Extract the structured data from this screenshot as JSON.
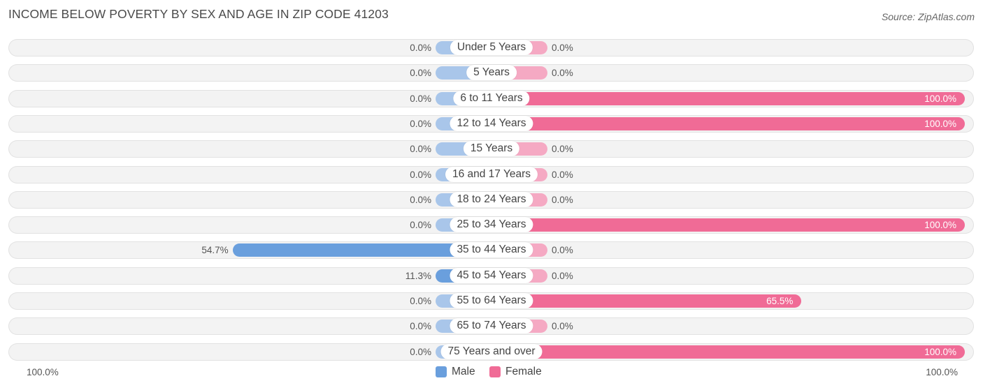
{
  "title": "INCOME BELOW POVERTY BY SEX AND AGE IN ZIP CODE 41203",
  "source": "Source: ZipAtlas.com",
  "axis": {
    "left_label": "100.0%",
    "right_label": "100.0%"
  },
  "legend": {
    "male": "Male",
    "female": "Female"
  },
  "colors": {
    "male": "#a9c6ea",
    "male_strong": "#6a9fdd",
    "female": "#f5a9c3",
    "female_strong": "#f06b96",
    "row_bg": "#f3f3f3"
  },
  "chart_data": {
    "type": "bar",
    "orientation": "horizontal-diverging",
    "categories": [
      "Under 5 Years",
      "5 Years",
      "6 to 11 Years",
      "12 to 14 Years",
      "15 Years",
      "16 and 17 Years",
      "18 to 24 Years",
      "25 to 34 Years",
      "35 to 44 Years",
      "45 to 54 Years",
      "55 to 64 Years",
      "65 to 74 Years",
      "75 Years and over"
    ],
    "series": [
      {
        "name": "Male",
        "values": [
          0.0,
          0.0,
          0.0,
          0.0,
          0.0,
          0.0,
          0.0,
          0.0,
          54.7,
          11.3,
          0.0,
          0.0,
          0.0
        ],
        "labels": [
          "0.0%",
          "0.0%",
          "0.0%",
          "0.0%",
          "0.0%",
          "0.0%",
          "0.0%",
          "0.0%",
          "54.7%",
          "11.3%",
          "0.0%",
          "0.0%",
          "0.0%"
        ]
      },
      {
        "name": "Female",
        "values": [
          0.0,
          0.0,
          100.0,
          100.0,
          0.0,
          0.0,
          0.0,
          100.0,
          0.0,
          0.0,
          65.5,
          0.0,
          100.0
        ],
        "labels": [
          "0.0%",
          "0.0%",
          "100.0%",
          "100.0%",
          "0.0%",
          "0.0%",
          "0.0%",
          "100.0%",
          "0.0%",
          "0.0%",
          "65.5%",
          "0.0%",
          "100.0%"
        ]
      }
    ],
    "xlim": [
      -100,
      100
    ],
    "legend_position": "bottom-center"
  }
}
